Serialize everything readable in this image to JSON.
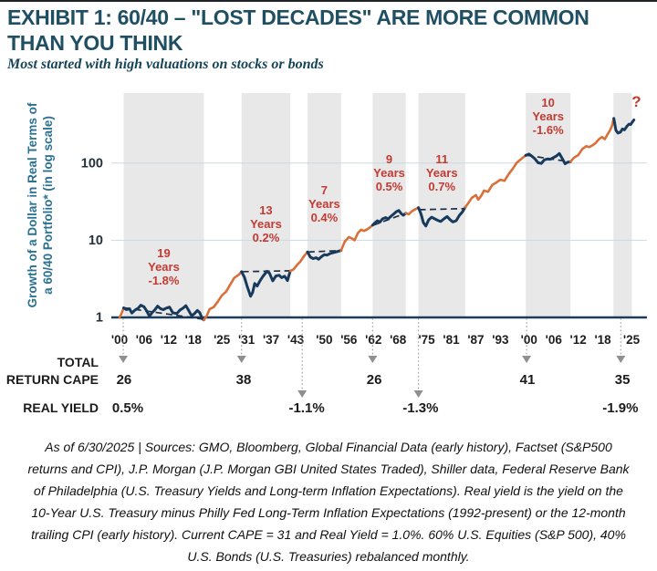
{
  "header": {
    "title_line1": "EXHIBIT 1: 60/40 – \"LOST DECADES\" ARE MORE COMMON",
    "title_line2": "THAN YOU THINK",
    "subtitle": "Most started with high valuations on stocks or bonds"
  },
  "footnote": {
    "lines": [
      "As of 6/30/2025 | Sources: GMO, Bloomberg, Global Financial Data (early history), Factset (S&P500",
      "returns and CPI), J.P. Morgan (J.P. Morgan GBI United States Traded), Shiller data, Federal Reserve Bank",
      "of Philadelphia (U.S. Treasury Yields and Long-term Inflation Expectations). Real yield is the yield on the",
      "10-Year U.S. Treasury minus Philly Fed Long-Term Inflation Expectations (1992-present) or the 12-month",
      "trailing CPI (early history). Current CAPE = 31 and Real Yield = 1.0%. 60% U.S. Equities (S&P 500), 40%",
      "U.S. Bonds (U.S. Treasuries) rebalanced monthly."
    ]
  },
  "colors": {
    "orange": "#D9703A",
    "navy": "#17395C",
    "band": "#E8E8E8",
    "annotation_red": "#C23B33",
    "baseline": "#1C3C5E",
    "grid": "#CCD8E2",
    "dash": "#1B2F42",
    "arrow_gray": "#8F8F8F",
    "dotted": "#9B9B9B"
  },
  "chart_data": {
    "type": "line",
    "title": "60/40 lost decades",
    "ylabel_line1": "Growth of a Dollar in Real Terms of",
    "ylabel_line2": "a 60/40 Portfolio* (in log scale)",
    "yscale": "log",
    "ylim": [
      1,
      1000
    ],
    "grid": "horizontal at 10 and 100",
    "yticks": [
      {
        "value": 1,
        "label": "1"
      },
      {
        "value": 10,
        "label": "10"
      },
      {
        "value": 100,
        "label": "100"
      }
    ],
    "xlim": [
      1900,
      2026.5
    ],
    "xticks": [
      {
        "year": 1900,
        "label": "'00"
      },
      {
        "year": 1906,
        "label": "'06"
      },
      {
        "year": 1912,
        "label": "'12"
      },
      {
        "year": 1918,
        "label": "'18"
      },
      {
        "year": 1925,
        "label": "'25"
      },
      {
        "year": 1931,
        "label": "'31"
      },
      {
        "year": 1937,
        "label": "'37"
      },
      {
        "year": 1943,
        "label": "'43"
      },
      {
        "year": 1950,
        "label": "'50"
      },
      {
        "year": 1956,
        "label": "'56"
      },
      {
        "year": 1962,
        "label": "'62"
      },
      {
        "year": 1968,
        "label": "'68"
      },
      {
        "year": 1975,
        "label": "'75"
      },
      {
        "year": 1981,
        "label": "'81"
      },
      {
        "year": 1987,
        "label": "'87"
      },
      {
        "year": 1993,
        "label": "'93"
      },
      {
        "year": 2000,
        "label": "'00"
      },
      {
        "year": 2006,
        "label": "'06"
      },
      {
        "year": 2012,
        "label": "'12"
      },
      {
        "year": 2018,
        "label": "'18"
      },
      {
        "year": 2025,
        "label": "'25"
      }
    ],
    "series_name": "Growth of a dollar in real terms, 60/40 portfolio",
    "series": [
      [
        1900,
        1.0
      ],
      [
        1900.5,
        1.12
      ],
      [
        1901,
        1.33
      ],
      [
        1901.7,
        1.26
      ],
      [
        1902.4,
        1.3
      ],
      [
        1903,
        1.14
      ],
      [
        1903.8,
        1.25
      ],
      [
        1904.5,
        1.31
      ],
      [
        1905.2,
        1.44
      ],
      [
        1906,
        1.37
      ],
      [
        1906.6,
        1.22
      ],
      [
        1907.3,
        1.04
      ],
      [
        1908,
        1.16
      ],
      [
        1908.6,
        1.25
      ],
      [
        1909.3,
        1.4
      ],
      [
        1910,
        1.3
      ],
      [
        1910.7,
        1.26
      ],
      [
        1911.4,
        1.32
      ],
      [
        1912.2,
        1.36
      ],
      [
        1913,
        1.15
      ],
      [
        1914,
        1.12
      ],
      [
        1914.8,
        1.25
      ],
      [
        1915.5,
        1.32
      ],
      [
        1916.2,
        1.42
      ],
      [
        1917,
        1.2
      ],
      [
        1917.6,
        1.05
      ],
      [
        1918.3,
        1.12
      ],
      [
        1919,
        1.23
      ],
      [
        1919.6,
        1.15
      ],
      [
        1920.2,
        0.96
      ],
      [
        1920.6,
        0.93
      ],
      [
        1921.3,
        1.05
      ],
      [
        1922,
        1.28
      ],
      [
        1923,
        1.36
      ],
      [
        1924,
        1.6
      ],
      [
        1925,
        1.93
      ],
      [
        1926,
        2.15
      ],
      [
        1927,
        2.65
      ],
      [
        1928,
        3.25
      ],
      [
        1929.2,
        3.6
      ],
      [
        1929.8,
        3.92
      ],
      [
        1930.5,
        3.3
      ],
      [
        1931.2,
        2.5
      ],
      [
        1932,
        1.88
      ],
      [
        1932.5,
        2.12
      ],
      [
        1933,
        2.75
      ],
      [
        1933.6,
        2.55
      ],
      [
        1934.2,
        2.92
      ],
      [
        1935,
        3.4
      ],
      [
        1936,
        3.96
      ],
      [
        1936.6,
        3.75
      ],
      [
        1937.4,
        2.98
      ],
      [
        1938.2,
        3.45
      ],
      [
        1939,
        3.52
      ],
      [
        1939.6,
        3.28
      ],
      [
        1940.3,
        3.42
      ],
      [
        1941,
        3.0
      ],
      [
        1941.7,
        3.98
      ],
      [
        1942.5,
        4.2
      ],
      [
        1943.3,
        4.75
      ],
      [
        1944.2,
        5.35
      ],
      [
        1945,
        6.2
      ],
      [
        1945.9,
        7.05
      ],
      [
        1946.6,
        6.05
      ],
      [
        1947.3,
        5.78
      ],
      [
        1948,
        5.95
      ],
      [
        1948.6,
        5.68
      ],
      [
        1949.3,
        6.12
      ],
      [
        1950,
        6.5
      ],
      [
        1950.7,
        6.42
      ],
      [
        1951.4,
        6.72
      ],
      [
        1952.2,
        6.92
      ],
      [
        1953,
        7.1
      ],
      [
        1954.1,
        7.38
      ],
      [
        1955,
        9.6
      ],
      [
        1956,
        11.0
      ],
      [
        1956.7,
        10.6
      ],
      [
        1957.4,
        10.0
      ],
      [
        1958.2,
        12.4
      ],
      [
        1959,
        13.7
      ],
      [
        1959.7,
        13.2
      ],
      [
        1960.5,
        13.9
      ],
      [
        1961.1,
        14.6
      ],
      [
        1961.8,
        15.7
      ],
      [
        1962.4,
        16.9
      ],
      [
        1963,
        17.9
      ],
      [
        1963.6,
        17.2
      ],
      [
        1964.2,
        18.9
      ],
      [
        1965,
        19.7
      ],
      [
        1965.6,
        18.9
      ],
      [
        1966.3,
        20.5
      ],
      [
        1967,
        22.0
      ],
      [
        1967.6,
        23.5
      ],
      [
        1968.2,
        24.3
      ],
      [
        1968.8,
        22.1
      ],
      [
        1969.3,
        21.1
      ],
      [
        1969.9,
        22.4
      ],
      [
        1970.6,
        21.7
      ],
      [
        1971.3,
        23.6
      ],
      [
        1972.2,
        25.2
      ],
      [
        1973,
        26.4
      ],
      [
        1973.6,
        22.1
      ],
      [
        1974.2,
        16.9
      ],
      [
        1974.8,
        15.3
      ],
      [
        1975.5,
        18.4
      ],
      [
        1976.2,
        19.9
      ],
      [
        1977,
        18.9
      ],
      [
        1977.7,
        18.1
      ],
      [
        1978.4,
        17.5
      ],
      [
        1979.2,
        18.9
      ],
      [
        1980,
        20.3
      ],
      [
        1980.7,
        18.5
      ],
      [
        1981.4,
        17.3
      ],
      [
        1982.2,
        17.9
      ],
      [
        1983,
        21.1
      ],
      [
        1983.7,
        23.2
      ],
      [
        1984.4,
        26.7
      ],
      [
        1985.2,
        30.5
      ],
      [
        1986,
        35.5
      ],
      [
        1987,
        38.5
      ],
      [
        1987.6,
        33.6
      ],
      [
        1988.3,
        37.5
      ],
      [
        1989,
        44.0
      ],
      [
        1990,
        42.5
      ],
      [
        1991,
        52.0
      ],
      [
        1992,
        56.0
      ],
      [
        1993,
        61.0
      ],
      [
        1994,
        59.0
      ],
      [
        1995,
        72.0
      ],
      [
        1996,
        84.0
      ],
      [
        1997,
        101.0
      ],
      [
        1998,
        112.0
      ],
      [
        1999.2,
        126.0
      ],
      [
        2000,
        131.0
      ],
      [
        2000.7,
        123.0
      ],
      [
        2001.4,
        114.0
      ],
      [
        2002.2,
        101.0
      ],
      [
        2003,
        99.0
      ],
      [
        2003.7,
        110.0
      ],
      [
        2004.5,
        113.0
      ],
      [
        2005.2,
        112.0
      ],
      [
        2006,
        118.0
      ],
      [
        2006.7,
        124.0
      ],
      [
        2007.4,
        133.0
      ],
      [
        2008.2,
        112.0
      ],
      [
        2008.8,
        98.0
      ],
      [
        2009.5,
        103.0
      ],
      [
        2010.1,
        104.0
      ],
      [
        2011,
        118.0
      ],
      [
        2012,
        127.0
      ],
      [
        2013,
        152.0
      ],
      [
        2014,
        166.0
      ],
      [
        2014.7,
        161.0
      ],
      [
        2015.5,
        170.0
      ],
      [
        2016.3,
        183.0
      ],
      [
        2017,
        203.0
      ],
      [
        2017.8,
        218.0
      ],
      [
        2018.5,
        204.0
      ],
      [
        2019.2,
        238.0
      ],
      [
        2019.8,
        268.0
      ],
      [
        2020.2,
        300.0
      ],
      [
        2020.7,
        380.0
      ],
      [
        2021.2,
        268.0
      ],
      [
        2021.7,
        245.0
      ],
      [
        2022.3,
        252.0
      ],
      [
        2022.8,
        277.0
      ],
      [
        2023.3,
        270.0
      ],
      [
        2023.9,
        300.0
      ],
      [
        2024.4,
        320.0
      ],
      [
        2024.8,
        315.0
      ],
      [
        2025.3,
        345.0
      ],
      [
        2025.6,
        362.0
      ]
    ],
    "lost_decades": [
      {
        "start": 1901,
        "end": 1920.6,
        "annotation": [
          "19",
          "Years",
          "-1.8%"
        ],
        "annotation_top": 183,
        "dash": [
          1901.2,
          1.33,
          1920.3,
          0.95
        ]
      },
      {
        "start": 1929.8,
        "end": 1941.7,
        "annotation": [
          "13",
          "Years",
          "0.2%"
        ],
        "annotation_top": 136,
        "dash": [
          1930,
          3.92,
          1941.5,
          4.02
        ]
      },
      {
        "start": 1945.9,
        "end": 1954.1,
        "annotation": [
          "7",
          "Years",
          "0.4%"
        ],
        "annotation_top": 114,
        "dash": [
          1946.1,
          7.05,
          1953.9,
          7.35
        ]
      },
      {
        "start": 1961.8,
        "end": 1969.9,
        "annotation": [
          "9",
          "Years",
          "0.5%"
        ],
        "annotation_top": 80,
        "dash": [
          1962,
          15.7,
          1969.7,
          22.2
        ]
      },
      {
        "start": 1973,
        "end": 1984.4,
        "annotation": [
          "11",
          "Years",
          "0.7%"
        ],
        "annotation_top": 80,
        "dash": [
          1973.2,
          24.9,
          1984.2,
          25.7
        ]
      },
      {
        "start": 1999.2,
        "end": 2010.1,
        "annotation": [
          "10",
          "Years",
          "-1.6%"
        ],
        "annotation_top": 18,
        "dash": [
          1999.5,
          126,
          2009.9,
          104
        ]
      },
      {
        "start": 2020.6,
        "end": 2025.1,
        "color_end": 2026,
        "annotation": [
          "?"
        ],
        "annotation_top": 15,
        "label_x_year": 2026.2,
        "dash": null
      }
    ],
    "table": {
      "row1_label_line1": "TOTAL",
      "row1_label_line2": "RETURN CAPE",
      "row2_label": "REAL YIELD",
      "cape_values": [
        {
          "year": 1901.1,
          "value": "26"
        },
        {
          "year": 1930.3,
          "value": "38"
        },
        {
          "year": 1962.2,
          "value": "26"
        },
        {
          "year": 1999.6,
          "value": "41"
        },
        {
          "year": 2022.8,
          "value": "35"
        }
      ],
      "yield_values": [
        {
          "year": 1902,
          "value": "0.5%"
        },
        {
          "year": 1945.7,
          "value": "-1.1%"
        },
        {
          "year": 1973.5,
          "value": "-1.3%"
        },
        {
          "year": 2022.3,
          "value": "-1.9%"
        }
      ],
      "arrows": [
        {
          "year": 1900.9,
          "long": false
        },
        {
          "year": 1929.8,
          "long": false
        },
        {
          "year": 1944.6,
          "long": true
        },
        {
          "year": 1961.8,
          "long": false
        },
        {
          "year": 1973.0,
          "long": true
        },
        {
          "year": 1999.4,
          "long": false
        },
        {
          "year": 2022.4,
          "long": false
        }
      ]
    }
  }
}
